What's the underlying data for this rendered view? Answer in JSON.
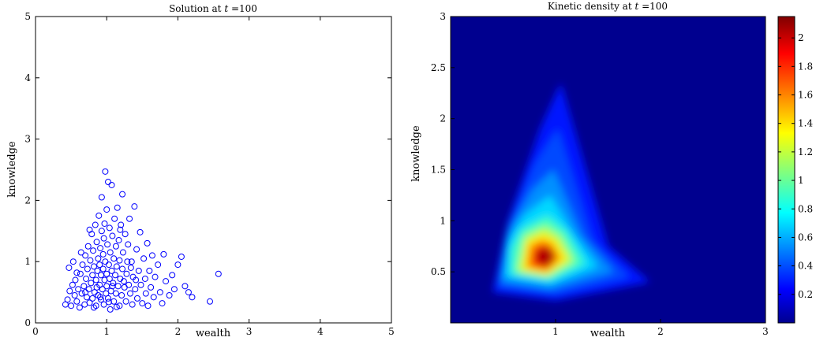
{
  "colors": {
    "marker": "#0000ff",
    "frame": "#000000"
  },
  "chart_data": [
    {
      "type": "scatter",
      "title": "Solution at t =100",
      "title_parts": {
        "prefix": "Solution at ",
        "var": "t",
        "suffix": " =100"
      },
      "xlabel": "wealth",
      "ylabel": "knowledge",
      "xlim": [
        0,
        5
      ],
      "ylim": [
        0,
        5
      ],
      "xticks": [
        0,
        1,
        2,
        3,
        4,
        5
      ],
      "yticks": [
        0,
        1,
        2,
        3,
        4,
        5
      ],
      "marker": "open-circle",
      "points": [
        [
          0.42,
          0.3
        ],
        [
          0.45,
          0.38
        ],
        [
          0.48,
          0.52
        ],
        [
          0.5,
          0.28
        ],
        [
          0.52,
          0.62
        ],
        [
          0.55,
          0.45
        ],
        [
          0.56,
          0.7
        ],
        [
          0.58,
          0.35
        ],
        [
          0.6,
          0.55
        ],
        [
          0.62,
          0.25
        ],
        [
          0.63,
          0.8
        ],
        [
          0.65,
          0.48
        ],
        [
          0.66,
          0.95
        ],
        [
          0.68,
          0.6
        ],
        [
          0.69,
          0.3
        ],
        [
          0.7,
          1.1
        ],
        [
          0.71,
          0.72
        ],
        [
          0.72,
          0.42
        ],
        [
          0.73,
          0.88
        ],
        [
          0.74,
          1.25
        ],
        [
          0.75,
          0.55
        ],
        [
          0.76,
          0.33
        ],
        [
          0.77,
          1.02
        ],
        [
          0.78,
          0.65
        ],
        [
          0.79,
          1.45
        ],
        [
          0.8,
          0.78
        ],
        [
          0.8,
          0.4
        ],
        [
          0.81,
          1.18
        ],
        [
          0.82,
          0.92
        ],
        [
          0.83,
          0.5
        ],
        [
          0.84,
          1.6
        ],
        [
          0.85,
          0.7
        ],
        [
          0.85,
          0.28
        ],
        [
          0.86,
          1.32
        ],
        [
          0.87,
          0.85
        ],
        [
          0.88,
          1.05
        ],
        [
          0.88,
          0.45
        ],
        [
          0.89,
          1.75
        ],
        [
          0.9,
          0.62
        ],
        [
          0.9,
          0.95
        ],
        [
          0.91,
          1.22
        ],
        [
          0.92,
          0.38
        ],
        [
          0.92,
          0.78
        ],
        [
          0.93,
          2.05
        ],
        [
          0.93,
          1.5
        ],
        [
          0.94,
          0.55
        ],
        [
          0.95,
          1.12
        ],
        [
          0.95,
          0.88
        ],
        [
          0.96,
          0.3
        ],
        [
          0.96,
          1.38
        ],
        [
          0.97,
          0.7
        ],
        [
          0.98,
          2.47
        ],
        [
          0.98,
          1.0
        ],
        [
          0.99,
          0.48
        ],
        [
          1.0,
          1.85
        ],
        [
          1.0,
          0.8
        ],
        [
          1.0,
          0.6
        ],
        [
          1.01,
          1.28
        ],
        [
          1.02,
          0.4
        ],
        [
          1.02,
          2.3
        ],
        [
          1.03,
          0.95
        ],
        [
          1.04,
          1.55
        ],
        [
          1.04,
          0.72
        ],
        [
          1.05,
          0.22
        ],
        [
          1.05,
          1.15
        ],
        [
          1.06,
          0.52
        ],
        [
          1.07,
          2.25
        ],
        [
          1.07,
          0.85
        ],
        [
          1.08,
          1.42
        ],
        [
          1.09,
          0.65
        ],
        [
          1.1,
          1.05
        ],
        [
          1.1,
          0.35
        ],
        [
          1.11,
          1.7
        ],
        [
          1.12,
          0.78
        ],
        [
          1.13,
          1.25
        ],
        [
          1.13,
          0.48
        ],
        [
          1.14,
          0.92
        ],
        [
          1.15,
          1.88
        ],
        [
          1.16,
          0.6
        ],
        [
          1.17,
          1.35
        ],
        [
          1.18,
          0.28
        ],
        [
          1.18,
          1.02
        ],
        [
          1.19,
          0.72
        ],
        [
          1.2,
          1.6
        ],
        [
          1.21,
          0.45
        ],
        [
          1.22,
          2.1
        ],
        [
          1.22,
          0.88
        ],
        [
          1.23,
          1.15
        ],
        [
          1.25,
          0.58
        ],
        [
          1.26,
          1.45
        ],
        [
          1.27,
          0.35
        ],
        [
          1.28,
          0.8
        ],
        [
          1.3,
          1.28
        ],
        [
          1.31,
          0.62
        ],
        [
          1.32,
          1.7
        ],
        [
          1.33,
          0.48
        ],
        [
          1.35,
          1.0
        ],
        [
          1.36,
          0.3
        ],
        [
          1.37,
          0.75
        ],
        [
          1.39,
          1.9
        ],
        [
          1.4,
          0.55
        ],
        [
          1.42,
          1.2
        ],
        [
          1.43,
          0.4
        ],
        [
          1.45,
          0.85
        ],
        [
          1.47,
          1.48
        ],
        [
          1.48,
          0.62
        ],
        [
          1.5,
          0.32
        ],
        [
          1.52,
          1.05
        ],
        [
          1.54,
          0.72
        ],
        [
          1.55,
          0.48
        ],
        [
          1.57,
          1.3
        ],
        [
          1.58,
          0.28
        ],
        [
          1.6,
          0.85
        ],
        [
          1.62,
          0.58
        ],
        [
          1.64,
          1.1
        ],
        [
          1.66,
          0.42
        ],
        [
          1.68,
          0.75
        ],
        [
          1.72,
          0.95
        ],
        [
          1.75,
          0.5
        ],
        [
          1.78,
          0.32
        ],
        [
          1.8,
          1.12
        ],
        [
          1.83,
          0.68
        ],
        [
          1.88,
          0.45
        ],
        [
          1.92,
          0.78
        ],
        [
          1.95,
          0.55
        ],
        [
          2.0,
          0.95
        ],
        [
          2.05,
          1.08
        ],
        [
          2.1,
          0.6
        ],
        [
          2.15,
          0.5
        ],
        [
          2.2,
          0.42
        ],
        [
          2.45,
          0.35
        ],
        [
          2.57,
          0.8
        ],
        [
          0.47,
          0.9
        ],
        [
          0.53,
          1.0
        ],
        [
          0.58,
          0.82
        ],
        [
          0.64,
          1.15
        ],
        [
          0.7,
          0.5
        ],
        [
          0.76,
          1.52
        ],
        [
          0.82,
          0.25
        ],
        [
          0.86,
          0.58
        ],
        [
          0.91,
          0.42
        ],
        [
          0.97,
          1.62
        ],
        [
          1.03,
          0.34
        ],
        [
          1.08,
          0.6
        ],
        [
          1.14,
          0.26
        ],
        [
          1.19,
          1.52
        ],
        [
          1.24,
          0.68
        ],
        [
          1.29,
          1.0
        ],
        [
          1.34,
          0.9
        ],
        [
          1.41,
          0.7
        ]
      ]
    },
    {
      "type": "heatmap",
      "title": "Kinetic density at t =100",
      "title_parts": {
        "prefix": "Kinetic density at ",
        "var": "t",
        "suffix": " =100"
      },
      "xlabel": "wealth",
      "ylabel": "knowledge",
      "xlim": [
        0,
        3
      ],
      "ylim": [
        0,
        3
      ],
      "xticks": [
        1,
        2,
        3
      ],
      "yticks": [
        0.5,
        1,
        1.5,
        2,
        2.5,
        3
      ],
      "colormap": "jet",
      "peak": {
        "wealth": 0.9,
        "knowledge": 0.65,
        "value": 2.15
      },
      "colorbar": {
        "ticks": [
          0.2,
          0.4,
          0.6,
          0.8,
          1,
          1.2,
          1.4,
          1.6,
          1.8,
          2
        ],
        "range": [
          0,
          2.15
        ]
      }
    }
  ]
}
